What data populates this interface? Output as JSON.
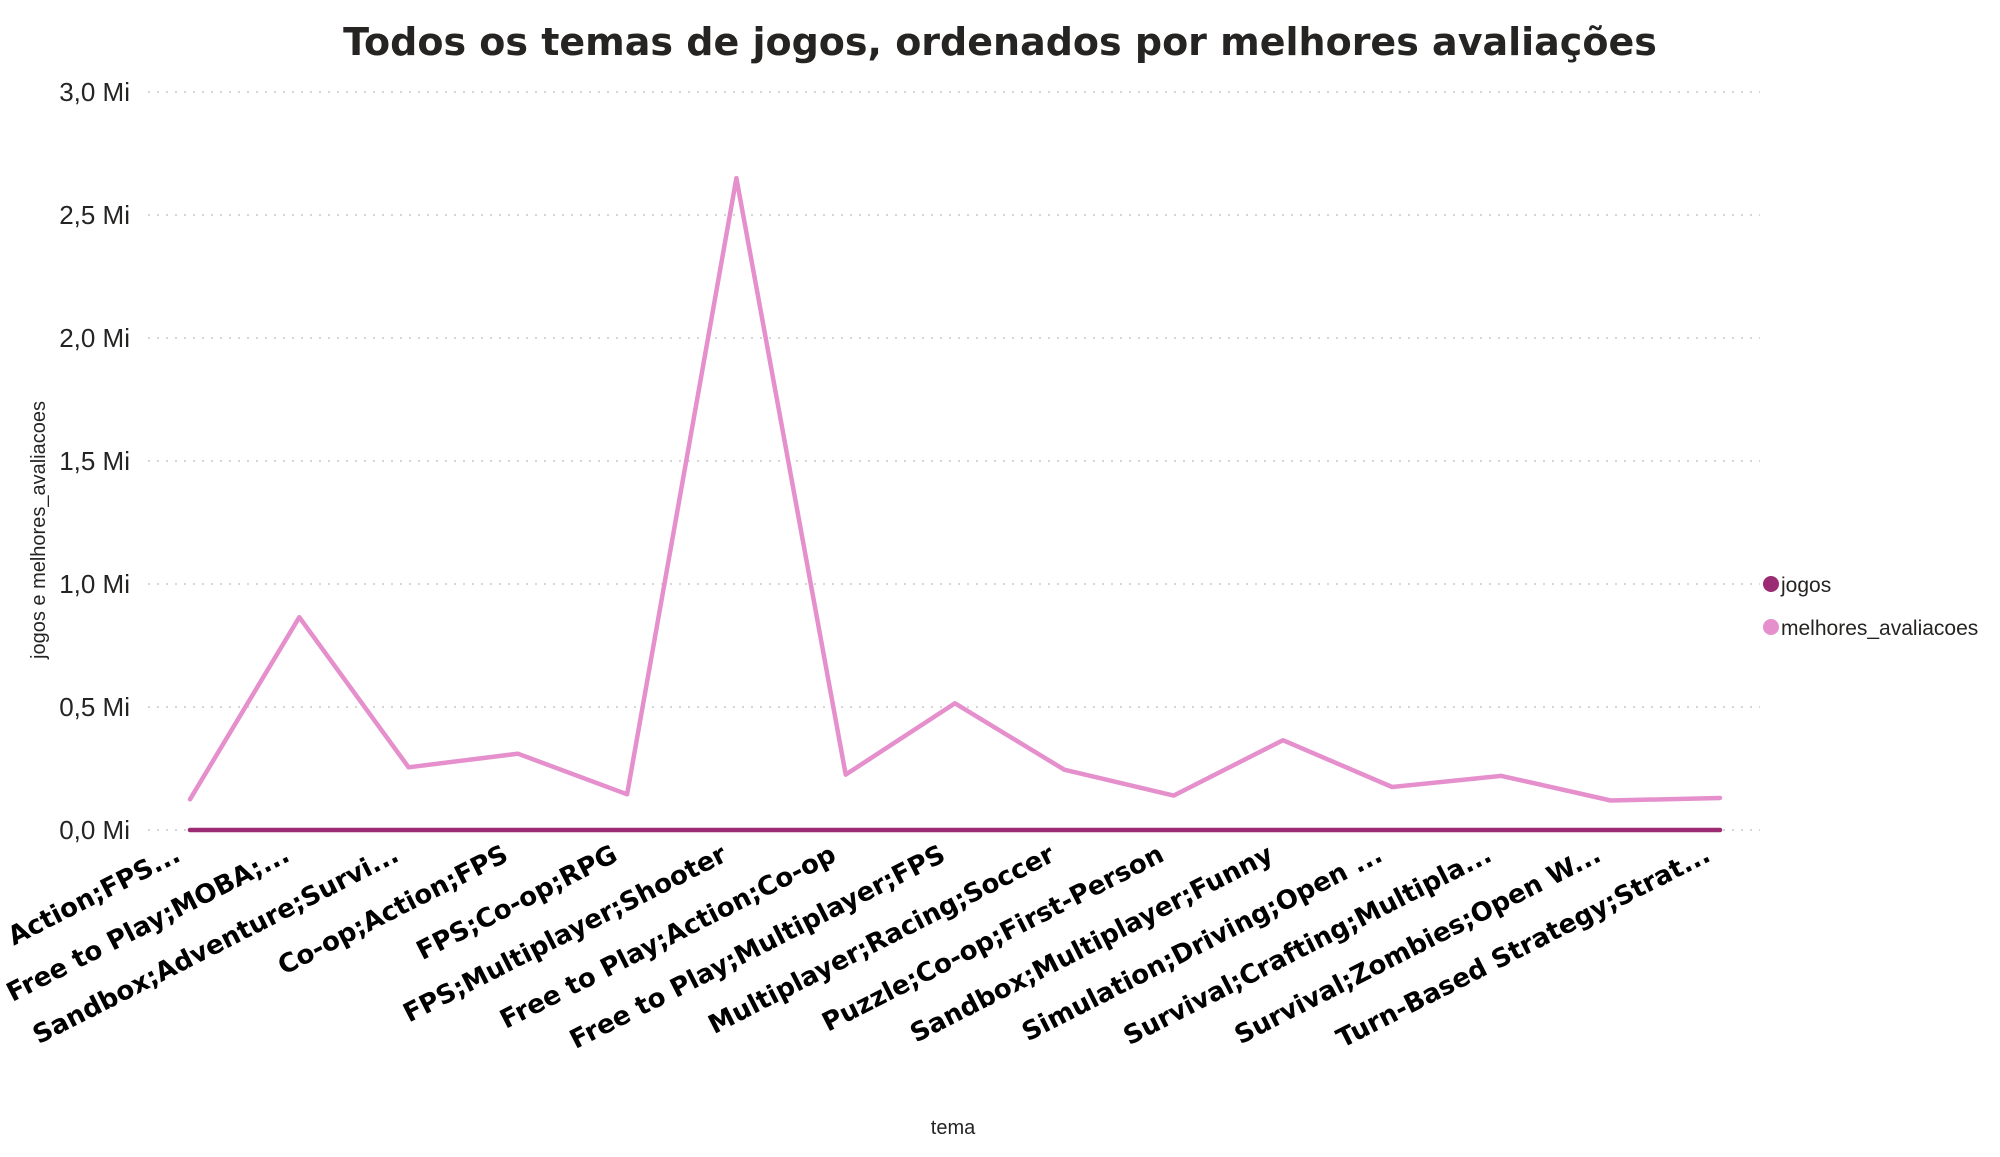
{
  "chart_data": {
    "type": "line",
    "title": "Todos os temas de jogos, ordenados por melhores avaliações",
    "xlabel": "tema",
    "ylabel": "jogos e melhores_avaliacoes",
    "ylim": [
      0,
      3000000
    ],
    "yticks": [
      {
        "value": 0,
        "label": "0,0 Mi"
      },
      {
        "value": 500000,
        "label": "0,5 Mi"
      },
      {
        "value": 1000000,
        "label": "1,0 Mi"
      },
      {
        "value": 1500000,
        "label": "1,5 Mi"
      },
      {
        "value": 2000000,
        "label": "2,0 Mi"
      },
      {
        "value": 2500000,
        "label": "2,5 Mi"
      },
      {
        "value": 3000000,
        "label": "3,0 Mi"
      }
    ],
    "categories": [
      "Action;FPS...",
      "Free to Play;MOBA;...",
      "Sandbox;Adventure;Survi...",
      "Co-op;Action;FPS",
      "FPS;Co-op;RPG",
      "FPS;Multiplayer;Shooter",
      "Free to Play;Action;Co-op",
      "Free to Play;Multiplayer;FPS",
      "Multiplayer;Racing;Soccer",
      "Puzzle;Co-op;First-Person",
      "Sandbox;Multiplayer;Funny",
      "Simulation;Driving;Open ...",
      "Survival;Crafting;Multipla...",
      "Survival;Zombies;Open W...",
      "Turn-Based Strategy;Strat..."
    ],
    "series": [
      {
        "name": "jogos",
        "color": "#9b2c73",
        "values": [
          1,
          1,
          1,
          1,
          1,
          1,
          1,
          1,
          1,
          1,
          1,
          1,
          1,
          1,
          1
        ]
      },
      {
        "name": "melhores_avaliacoes",
        "color": "#e58fcc",
        "values": [
          125000,
          865000,
          255000,
          310000,
          145000,
          2650000,
          225000,
          515000,
          245000,
          140000,
          365000,
          175000,
          220000,
          120000,
          130000
        ]
      }
    ],
    "grid": true,
    "legend_position": "right"
  }
}
